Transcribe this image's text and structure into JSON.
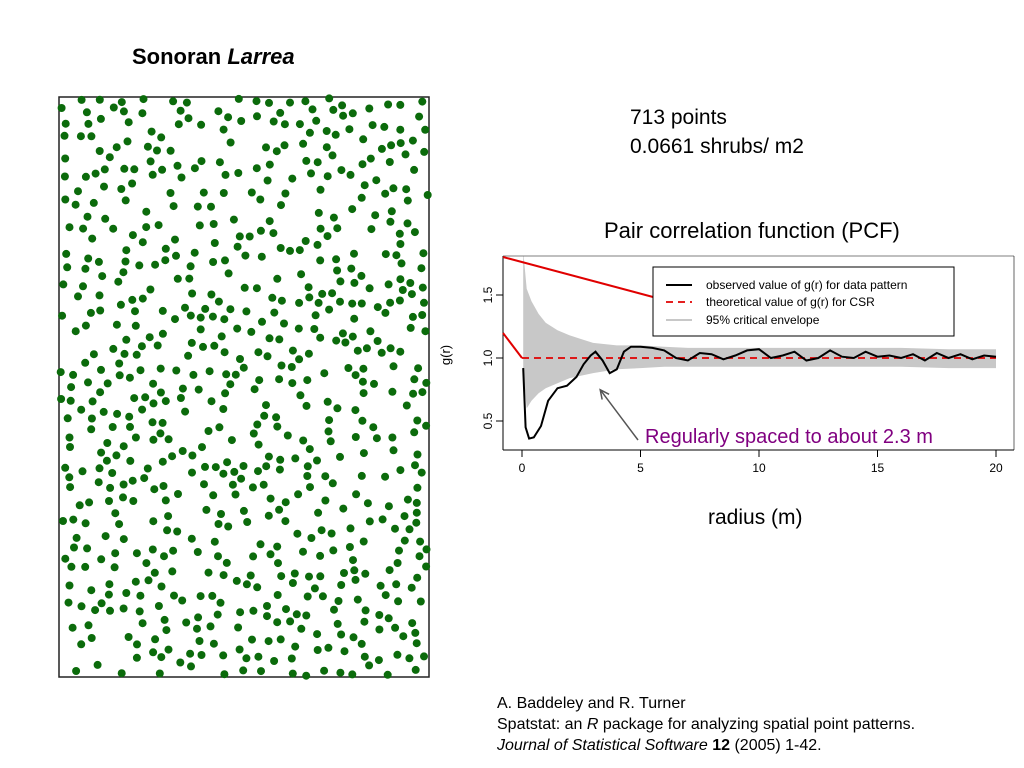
{
  "left_panel": {
    "title_plain": "Sonoran ",
    "title_italic": "Larrea",
    "point_color": "#0b6b0b"
  },
  "stats": {
    "points_line": "713 points",
    "density_line": "0.0661 shrubs/ m2"
  },
  "chart_data": {
    "type": "line",
    "title": "Pair correlation function (PCF)",
    "xlabel": "radius (m)",
    "ylabel": "g(r)",
    "xlim": [
      0,
      20
    ],
    "ylim": [
      0.25,
      1.85
    ],
    "xticks": [
      "0",
      "5",
      "10",
      "15",
      "20"
    ],
    "yticks": [
      "0.5",
      "1.0",
      "1.5"
    ],
    "series": [
      {
        "name": "observed value of g(r) for data pattern",
        "color": "#000000",
        "style": "solid",
        "x": [
          0.05,
          0.15,
          0.3,
          0.5,
          0.8,
          1.1,
          1.5,
          1.9,
          2.3,
          2.6,
          2.9,
          3.1,
          3.4,
          3.7,
          4.0,
          4.3,
          4.6,
          5.0,
          5.5,
          6.0,
          6.5,
          7.0,
          7.5,
          8.0,
          8.5,
          9.0,
          9.5,
          10.0,
          10.5,
          11.0,
          11.5,
          12.0,
          12.5,
          13.0,
          13.5,
          14.0,
          14.5,
          15.0,
          15.5,
          16.0,
          16.5,
          17.0,
          17.5,
          18.0,
          18.5,
          19.0,
          19.5,
          20.0
        ],
        "y": [
          0.92,
          0.45,
          0.36,
          0.37,
          0.46,
          0.66,
          0.76,
          0.78,
          0.85,
          0.95,
          1.02,
          1.05,
          0.98,
          0.88,
          0.91,
          1.05,
          1.09,
          1.09,
          1.08,
          1.06,
          1.0,
          0.98,
          1.04,
          1.03,
          0.99,
          1.02,
          1.06,
          1.07,
          1.0,
          1.02,
          1.05,
          0.98,
          1.0,
          1.06,
          1.01,
          1.0,
          1.05,
          1.01,
          1.02,
          1.0,
          1.03,
          0.98,
          1.04,
          1.0,
          1.03,
          0.99,
          1.02,
          1.01
        ]
      },
      {
        "name": "theoretical value of g(r) for CSR",
        "color": "#e00000",
        "style": "dashed",
        "x": [
          0,
          20
        ],
        "y": [
          1.0,
          1.0
        ]
      }
    ],
    "envelope": {
      "name": "95% critical envelope",
      "color": "#c8c8c8",
      "x": [
        0.05,
        0.2,
        0.4,
        0.7,
        1.0,
        1.5,
        2.0,
        2.5,
        3.0,
        4.0,
        5.0,
        6.0,
        7.0,
        8.0,
        10.0,
        12.0,
        14.0,
        16.0,
        18.0,
        20.0
      ],
      "lower": [
        0.9,
        0.6,
        0.66,
        0.72,
        0.76,
        0.8,
        0.84,
        0.86,
        0.88,
        0.91,
        0.92,
        0.93,
        0.93,
        0.93,
        0.93,
        0.93,
        0.93,
        0.93,
        0.92,
        0.92
      ],
      "upper": [
        1.85,
        1.55,
        1.45,
        1.35,
        1.28,
        1.22,
        1.18,
        1.15,
        1.12,
        1.1,
        1.1,
        1.09,
        1.08,
        1.08,
        1.08,
        1.08,
        1.08,
        1.08,
        1.07,
        1.07
      ]
    },
    "legend_position": "top-right",
    "annotation": {
      "text": "Regularly spaced to about 2.3 m",
      "color": "#800080",
      "arrow_tip": [
        3.3,
        0.78
      ]
    },
    "highlight_color": "#e00000"
  },
  "citation": {
    "line1": "A. Baddeley and R. Turner",
    "line2_pre": "Spatstat: an ",
    "line2_r": "R",
    "line2_post": " package for analyzing spatial point patterns.",
    "line3_journal": "Journal of Statistical Software",
    "line3_vol": " 12",
    "line3_rest": " (2005) 1-42."
  }
}
